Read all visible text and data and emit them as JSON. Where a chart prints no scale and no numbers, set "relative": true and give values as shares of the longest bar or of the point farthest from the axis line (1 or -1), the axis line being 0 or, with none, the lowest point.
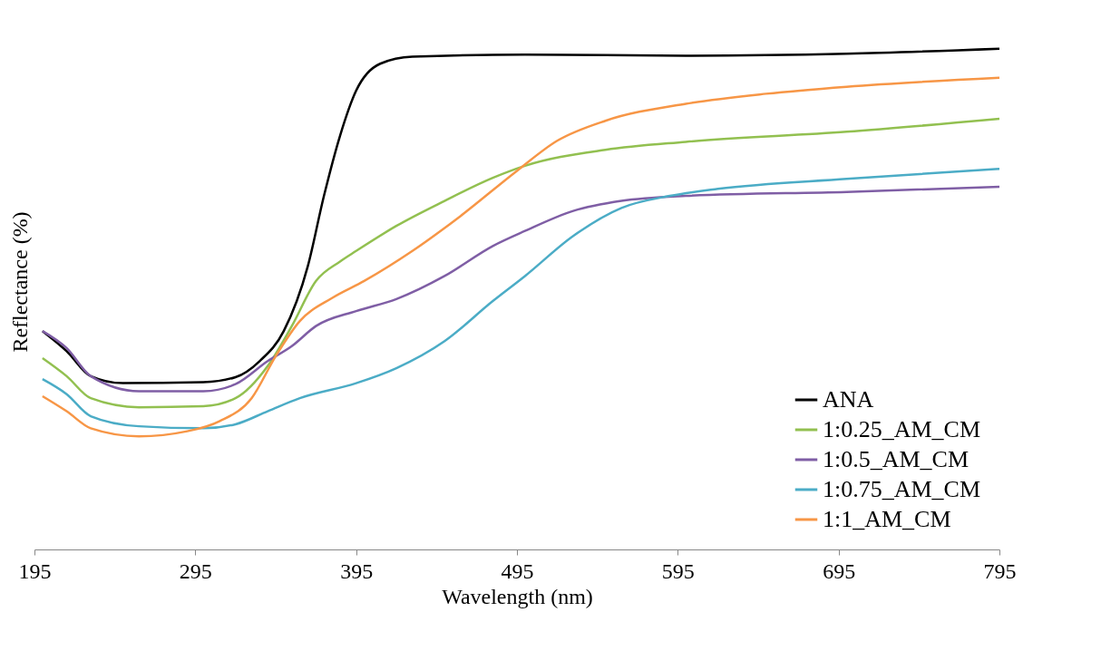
{
  "chart_data": {
    "type": "line",
    "relative": true,
    "xlabel": "Wavelength (nm)",
    "ylabel": "Reflectance (%)",
    "xlim": [
      195,
      795
    ],
    "xticks": [
      195,
      295,
      395,
      495,
      595,
      695,
      795
    ],
    "grid": false,
    "legend": "bottom right",
    "marker": "none",
    "line_style": "solid",
    "series": [
      {
        "name": "ANA",
        "color": "#000000",
        "x": [
          200,
          215,
          230,
          250,
          300,
          320,
          335,
          350,
          365,
          375,
          385,
          395,
          410,
          430,
          500,
          600,
          700,
          795
        ],
        "values": [
          0.436,
          0.396,
          0.346,
          0.332,
          0.334,
          0.344,
          0.376,
          0.436,
          0.566,
          0.706,
          0.826,
          0.916,
          0.97,
          0.984,
          0.988,
          0.986,
          0.99,
          1.0
        ]
      },
      {
        "name": "1:0.25_AM_CM",
        "color": "#92c050",
        "x": [
          200,
          215,
          230,
          260,
          300,
          320,
          340,
          355,
          370,
          385,
          395,
          420,
          450,
          480,
          500,
          550,
          600,
          700,
          795
        ],
        "values": [
          0.382,
          0.346,
          0.302,
          0.284,
          0.286,
          0.302,
          0.366,
          0.446,
          0.536,
          0.575,
          0.596,
          0.646,
          0.696,
          0.742,
          0.766,
          0.798,
          0.814,
          0.834,
          0.86
        ]
      },
      {
        "name": "1:0.5_AM_CM",
        "color": "#7f5ea5",
        "x": [
          200,
          215,
          230,
          260,
          300,
          320,
          340,
          355,
          370,
          395,
          420,
          450,
          480,
          500,
          530,
          560,
          600,
          700,
          795
        ],
        "values": [
          0.436,
          0.402,
          0.346,
          0.316,
          0.316,
          0.33,
          0.376,
          0.406,
          0.446,
          0.476,
          0.5,
          0.546,
          0.606,
          0.636,
          0.676,
          0.696,
          0.706,
          0.714,
          0.724
        ]
      },
      {
        "name": "1:0.75_AM_CM",
        "color": "#4bacc6",
        "x": [
          200,
          215,
          230,
          260,
          300,
          320,
          340,
          360,
          395,
          420,
          450,
          480,
          500,
          530,
          560,
          590,
          620,
          700,
          795
        ],
        "values": [
          0.34,
          0.31,
          0.266,
          0.246,
          0.242,
          0.25,
          0.276,
          0.302,
          0.332,
          0.362,
          0.416,
          0.496,
          0.546,
          0.626,
          0.682,
          0.706,
          0.72,
          0.74,
          0.76
        ]
      },
      {
        "name": "1:1_AM_CM",
        "color": "#f79646",
        "x": [
          200,
          215,
          230,
          260,
          290,
          310,
          330,
          345,
          360,
          380,
          400,
          430,
          460,
          495,
          520,
          550,
          600,
          650,
          700,
          795
        ],
        "values": [
          0.306,
          0.276,
          0.242,
          0.226,
          0.236,
          0.256,
          0.302,
          0.386,
          0.456,
          0.502,
          0.536,
          0.596,
          0.666,
          0.756,
          0.816,
          0.856,
          0.89,
          0.91,
          0.924,
          0.942
        ]
      }
    ]
  }
}
